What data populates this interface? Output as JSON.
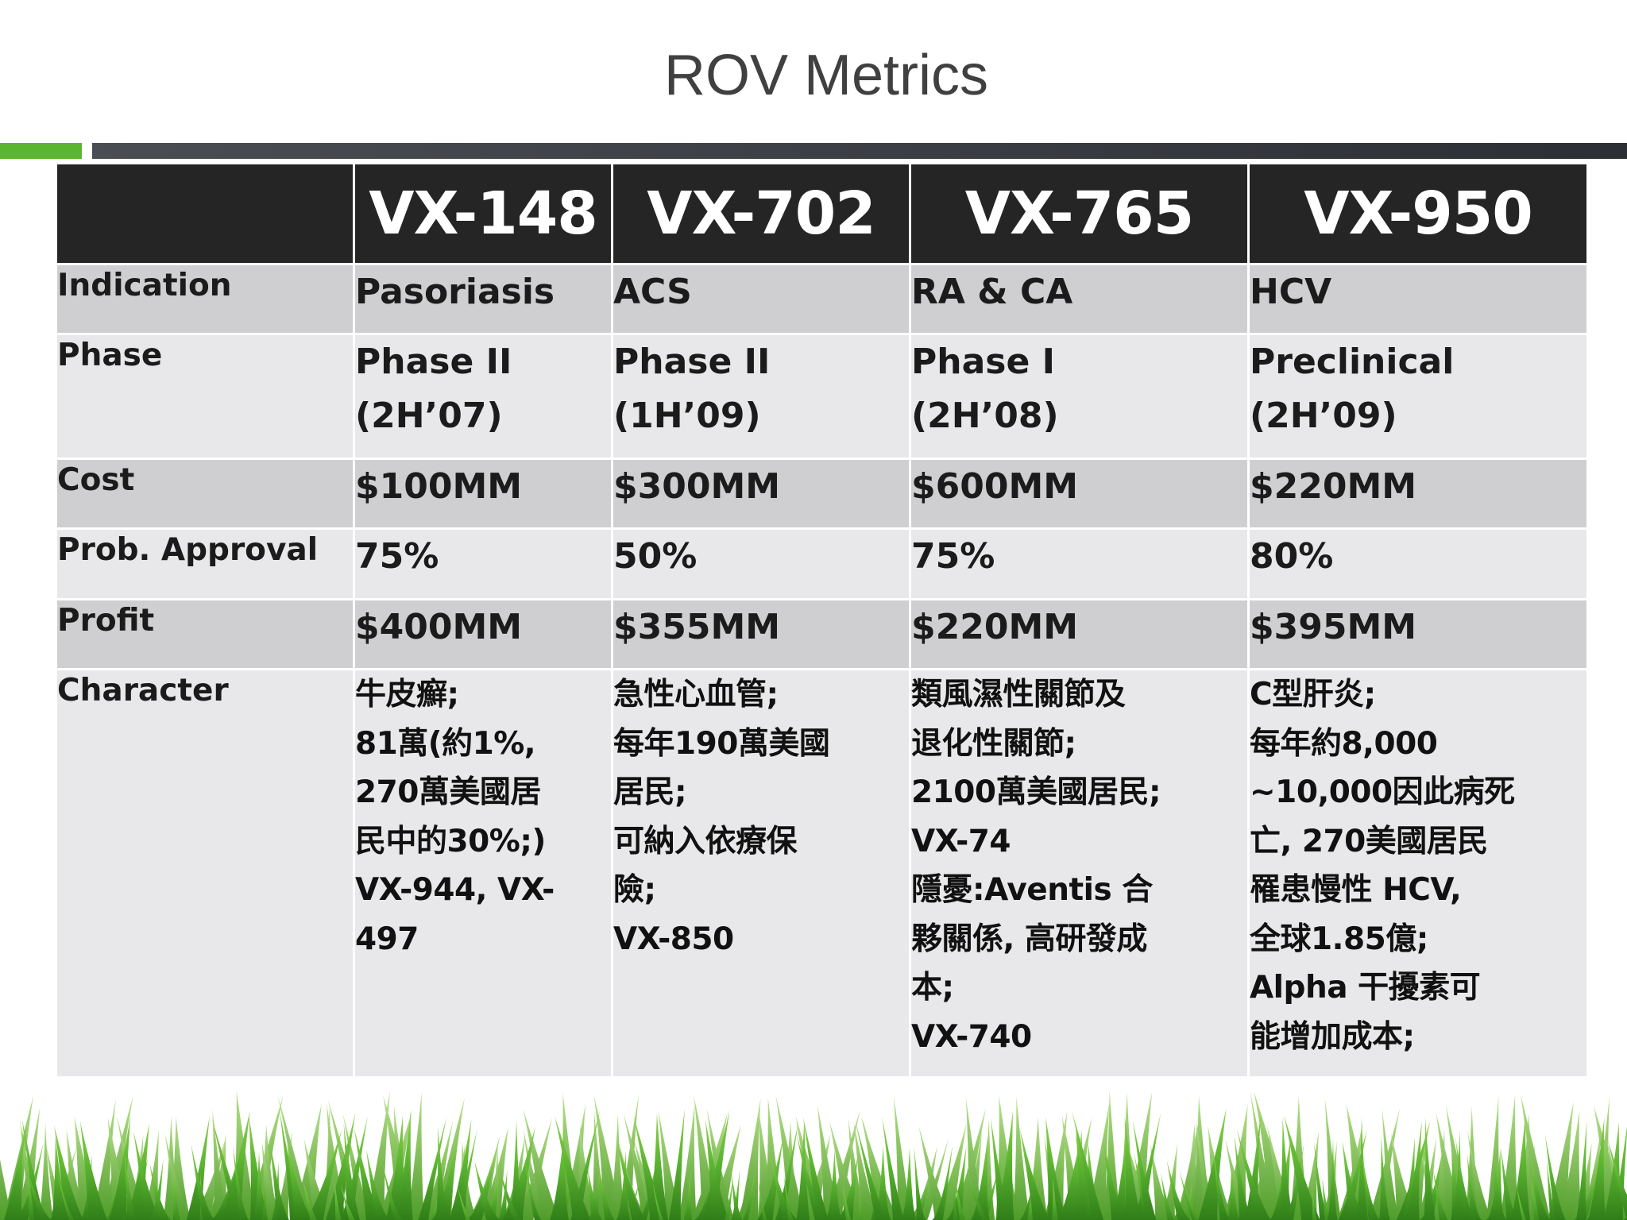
{
  "slide": {
    "title": "ROV Metrics"
  },
  "table": {
    "columns": [
      "",
      "VX-148",
      "VX-702",
      "VX-765",
      "VX-950"
    ],
    "rows": {
      "indication": {
        "label": "Indication",
        "values": [
          "Pasoriasis",
          "ACS",
          "RA & CA",
          "HCV"
        ]
      },
      "phase": {
        "label": "Phase",
        "values": [
          [
            "Phase II",
            "(2H’07)"
          ],
          [
            "Phase II",
            "(1H’09)"
          ],
          [
            "Phase I",
            "(2H’08)"
          ],
          [
            "Preclinical",
            "(2H’09)"
          ]
        ]
      },
      "cost": {
        "label": "Cost",
        "values": [
          "$100MM",
          "$300MM",
          "$600MM",
          "$220MM"
        ]
      },
      "approval": {
        "label": "Prob. Approval",
        "values": [
          "75%",
          "50%",
          "75%",
          "80%"
        ]
      },
      "profit": {
        "label": "Profit",
        "values": [
          "$400MM",
          "$355MM",
          "$220MM",
          "$395MM"
        ]
      },
      "character": {
        "label": "Character",
        "values": [
          [
            "牛皮癬;",
            "81萬(約1%,",
            "270萬美國居",
            "民中的30%;)",
            "VX-944, VX-",
            "497"
          ],
          [
            "急性心血管;",
            "每年190萬美國",
            "居民;",
            "可納入依療保",
            "險;",
            "VX-850"
          ],
          [
            "類風濕性關節及",
            "退化性關節;",
            "2100萬美國居民;",
            "VX-74",
            "隱憂:Aventis 合",
            "夥關係, 高研發成",
            "本;",
            "VX-740"
          ],
          [
            "C型肝炎;",
            "每年約8,000",
            "~10,000因此病死",
            "亡, 270美國居民",
            "罹患慢性 HCV,",
            "全球1.85億;",
            "Alpha 干擾素可",
            "能增加成本;"
          ]
        ]
      }
    }
  },
  "colors": {
    "header_bg": "#252525",
    "row_dark": "#cfcfd1",
    "row_light": "#e8e8ea",
    "accent_green": "#5cb531",
    "accent_bar": "#3a3d43",
    "title_text": "#404040"
  },
  "decoration": {
    "footer_image": "grass-illustration"
  }
}
